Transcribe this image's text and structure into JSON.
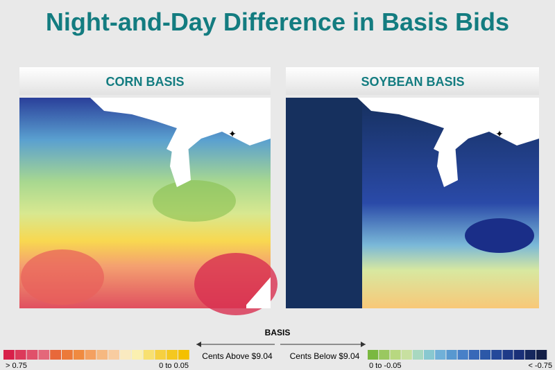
{
  "header": {
    "title": "Night-and-Day Difference in Basis Bids"
  },
  "panels": [
    {
      "title": "CORN BASIS"
    },
    {
      "title": "SOYBEAN BASIS"
    }
  ],
  "legend": {
    "title": "BASIS",
    "left_caption": "Cents Above $9.04",
    "right_caption": "Cents Below $9.04",
    "labels": [
      "> 0.75",
      "0 to 0.05",
      "0 to -0.05",
      "< -0.75"
    ]
  }
}
